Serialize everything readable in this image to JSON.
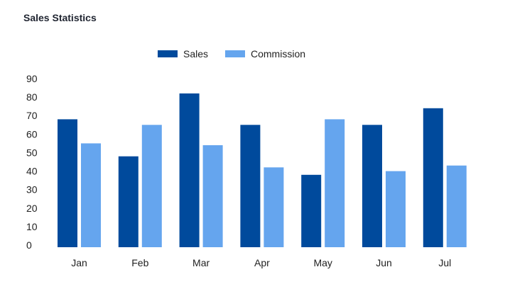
{
  "chart_data": {
    "type": "bar",
    "title": "Sales Statistics",
    "xlabel": "",
    "ylabel": "",
    "categories": [
      "Jan",
      "Feb",
      "Mar",
      "Apr",
      "May",
      "Jun",
      "Jul"
    ],
    "series": [
      {
        "name": "Sales",
        "color": "#004a9c",
        "values": [
          68,
          48,
          82,
          65,
          38,
          65,
          74
        ]
      },
      {
        "name": "Commission",
        "color": "#65a5ee",
        "values": [
          55,
          65,
          54,
          42,
          68,
          40,
          43
        ]
      }
    ],
    "ylim": [
      0,
      90
    ],
    "yticks": [
      "0",
      "10",
      "20",
      "30",
      "40",
      "50",
      "60",
      "70",
      "80",
      "90"
    ],
    "grid": false,
    "legend": "top-center"
  }
}
